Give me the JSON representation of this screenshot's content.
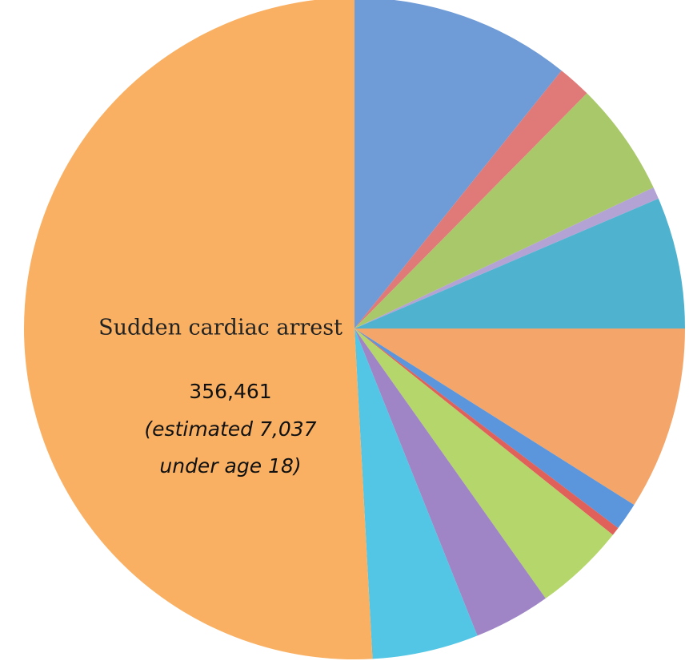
{
  "chart_data": {
    "type": "pie",
    "categories": [
      null,
      null,
      null,
      null,
      null,
      null,
      null,
      null,
      null,
      null,
      null,
      "Sudden cardiac arrest"
    ],
    "values": [
      75500,
      11500,
      39100,
      4100,
      45000,
      62700,
      9500,
      2900,
      31300,
      26300,
      36400,
      356461
    ],
    "value_labels": [
      null,
      null,
      null,
      null,
      null,
      null,
      null,
      null,
      null,
      null,
      null,
      "356,461"
    ],
    "colors": [
      "#6f9bd6",
      "#e07a78",
      "#a9c86a",
      "#b3a2d4",
      "#4fb3cf",
      "#f4a66a",
      "#5b95dc",
      "#e0605a",
      "#b5d66a",
      "#9f85c6",
      "#52c6e4",
      "#f9b063"
    ],
    "annotation": [
      "(estimated 7,037",
      "under age 18)"
    ]
  }
}
